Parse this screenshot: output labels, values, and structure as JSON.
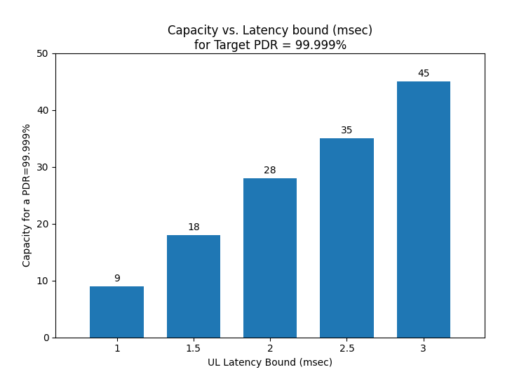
{
  "chart_data": {
    "type": "bar",
    "title": "Capacity vs. Latency bound (msec)\nfor Target PDR = 99.999%",
    "x": [
      1,
      1.5,
      2,
      2.5,
      3
    ],
    "values": [
      9,
      18,
      28,
      35,
      45
    ],
    "xlabel": "UL Latency Bound (msec)",
    "ylabel": "Capacity for a PDR=99.999%",
    "xlim": [
      0.6,
      3.4
    ],
    "xticks": [
      1,
      1.5,
      2,
      2.5,
      3
    ],
    "ylim": [
      0,
      50
    ],
    "yticks": [
      0,
      10,
      20,
      30,
      40,
      50
    ],
    "data_labels": true,
    "grid": false
  }
}
